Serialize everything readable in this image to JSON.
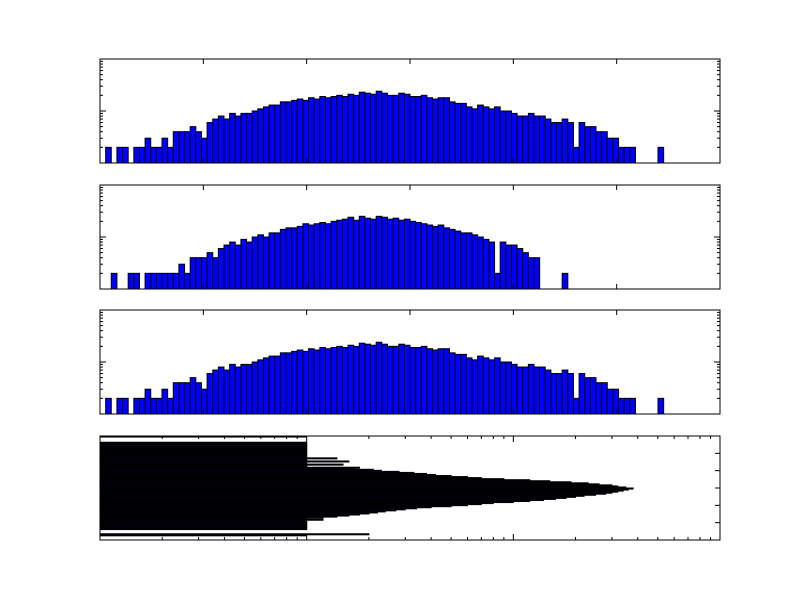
{
  "chart_data": [
    {
      "type": "bar",
      "orientation": "vertical",
      "yscale": "log",
      "ylim": [
        1,
        100
      ],
      "xlim": [
        0,
        110
      ],
      "bar_color": "#0000ff",
      "edge_color": "#000000",
      "tick_labels": "none",
      "values": [
        2,
        0,
        2,
        2,
        0,
        2,
        2,
        3,
        2,
        2,
        3,
        2,
        4,
        4,
        4,
        5,
        4,
        3,
        6,
        7,
        8,
        7,
        9,
        8,
        9,
        9,
        10,
        11,
        12,
        13,
        13,
        15,
        15,
        16,
        17,
        16,
        18,
        17,
        19,
        18,
        19,
        20,
        19,
        21,
        20,
        23,
        22,
        21,
        24,
        22,
        20,
        20,
        22,
        21,
        19,
        19,
        20,
        18,
        17,
        18,
        18,
        15,
        14,
        14,
        12,
        11,
        13,
        12,
        11,
        12,
        10,
        10,
        9,
        8,
        8,
        9,
        8,
        8,
        7,
        6,
        6,
        7,
        6,
        2,
        6,
        5,
        5,
        4,
        4,
        3,
        3,
        2,
        2,
        2,
        0,
        0,
        0,
        0,
        2
      ]
    },
    {
      "type": "bar",
      "orientation": "vertical",
      "yscale": "log",
      "ylim": [
        1,
        100
      ],
      "xlim": [
        0,
        110
      ],
      "bar_color": "#0000ff",
      "edge_color": "#000000",
      "tick_labels": "none",
      "values": [
        0,
        2,
        0,
        0,
        2,
        2,
        0,
        2,
        2,
        2,
        2,
        2,
        2,
        3,
        2,
        4,
        4,
        4,
        5,
        4,
        6,
        7,
        8,
        7,
        9,
        8,
        10,
        11,
        10,
        12,
        12,
        14,
        15,
        15,
        16,
        18,
        17,
        18,
        19,
        18,
        20,
        21,
        22,
        24,
        21,
        25,
        23,
        22,
        25,
        24,
        22,
        23,
        21,
        22,
        20,
        19,
        18,
        17,
        16,
        17,
        15,
        14,
        13,
        12,
        12,
        11,
        10,
        9,
        8,
        2,
        8,
        7,
        7,
        6,
        5,
        4,
        4,
        0,
        0,
        0,
        0,
        2,
        0,
        0,
        0,
        0,
        0,
        0,
        0,
        0
      ]
    },
    {
      "type": "bar",
      "orientation": "vertical",
      "yscale": "log",
      "ylim": [
        1,
        100
      ],
      "xlim": [
        0,
        110
      ],
      "bar_color": "#0000ff",
      "edge_color": "#000000",
      "tick_labels": "none",
      "values": [
        2,
        0,
        2,
        2,
        0,
        2,
        2,
        3,
        2,
        2,
        3,
        2,
        4,
        4,
        4,
        5,
        4,
        3,
        6,
        7,
        8,
        7,
        9,
        8,
        9,
        9,
        10,
        11,
        12,
        13,
        13,
        15,
        15,
        16,
        17,
        16,
        18,
        17,
        19,
        18,
        19,
        20,
        19,
        21,
        20,
        23,
        22,
        21,
        24,
        22,
        20,
        20,
        22,
        21,
        19,
        19,
        20,
        18,
        17,
        18,
        18,
        15,
        14,
        14,
        12,
        11,
        13,
        12,
        11,
        12,
        10,
        10,
        9,
        8,
        8,
        9,
        8,
        8,
        7,
        6,
        6,
        7,
        6,
        2,
        6,
        5,
        5,
        4,
        4,
        3,
        3,
        2,
        2,
        2,
        0,
        0,
        0,
        0,
        2
      ]
    },
    {
      "type": "bar",
      "orientation": "horizontal",
      "xscale": "log",
      "xlim": [
        1,
        1000
      ],
      "ylim": [
        0,
        100
      ],
      "bar_color": "#0000ff",
      "edge_color": "#000000",
      "tick_labels": "none",
      "values": [
        10,
        0,
        0,
        0,
        0,
        0,
        10,
        10,
        10,
        10,
        10,
        10,
        10,
        10,
        10,
        10,
        10,
        10,
        10,
        10,
        10,
        14,
        10,
        10,
        16,
        10,
        10,
        15,
        10,
        10,
        18,
        17,
        21,
        23,
        28,
        33,
        38,
        42,
        50,
        60,
        70,
        90,
        120,
        150,
        190,
        230,
        260,
        300,
        320,
        350,
        380,
        360,
        340,
        320,
        300,
        280,
        250,
        220,
        200,
        180,
        160,
        140,
        120,
        100,
        80,
        70,
        60,
        50,
        40,
        34,
        30,
        27,
        24,
        22,
        20,
        18,
        16,
        14,
        12,
        10,
        12,
        10,
        10,
        10,
        10,
        10,
        10,
        10,
        10,
        10,
        0,
        0,
        0,
        0,
        20,
        10,
        0,
        0,
        0,
        0
      ]
    }
  ]
}
